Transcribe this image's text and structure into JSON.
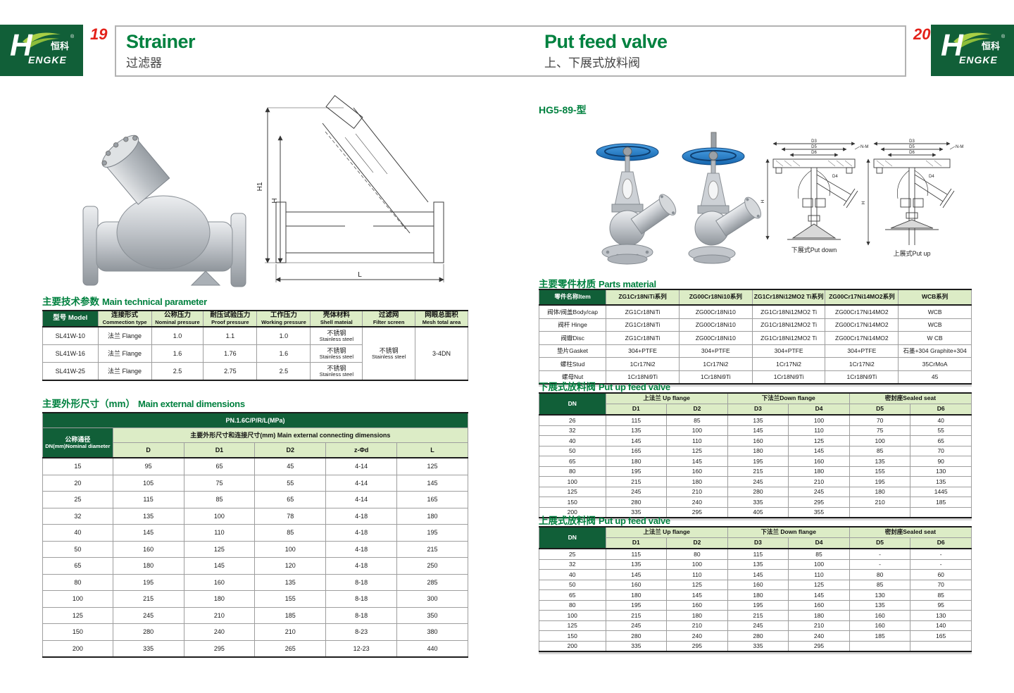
{
  "colors": {
    "brand_green": "#115f38",
    "light_green": "#dcecc6",
    "accent_green": "#00813f",
    "page_red": "#e32119",
    "handwheel_blue": "#1f7fd0"
  },
  "brand": {
    "h": "H",
    "rest": "ENGKE",
    "zh": "恒科",
    "reg": "®"
  },
  "left": {
    "page_no": "19",
    "title_en": "Strainer",
    "title_zh": "过滤器",
    "drawing_labels": {
      "h1": "H1",
      "h": "H",
      "l": "L"
    },
    "tech": {
      "title_zh": "主要技术参数",
      "title_en": "Main technical parameter",
      "head": [
        [
          {
            "t": "型号 Model",
            "cls": "dark"
          },
          {
            "t": "连接形式",
            "sub": "Commection type"
          },
          {
            "t": "公称压力",
            "sub": "Nominal pressure"
          },
          {
            "t": "耐压试验压力",
            "sub": "Proof pressure"
          },
          {
            "t": "工作压力",
            "sub": "Working pressure"
          },
          {
            "t": "壳体材料",
            "sub": "Shell mateial"
          },
          {
            "t": "过滤网",
            "sub": "Filter screen"
          },
          {
            "t": "网眼总面积",
            "sub": "Mesh total area"
          }
        ]
      ],
      "body": [
        [
          {
            "t": "SL41W-10"
          },
          {
            "t": "法兰 Flange"
          },
          {
            "t": "1.0"
          },
          {
            "t": "1.1"
          },
          {
            "t": "1.0"
          },
          {
            "t": "不锈钢",
            "sub": "Stainless steel"
          },
          {
            "t": "不锈钢",
            "sub": "Stainless steel",
            "rowspan": 3
          },
          {
            "t": "3-4DN",
            "rowspan": 3
          }
        ],
        [
          {
            "t": "SL41W-16"
          },
          {
            "t": "法兰 Flange"
          },
          {
            "t": "1.6"
          },
          {
            "t": "1.76"
          },
          {
            "t": "1.6"
          },
          {
            "t": "不锈钢",
            "sub": "Stainless steel"
          }
        ],
        [
          {
            "t": "SL41W-25"
          },
          {
            "t": "法兰 Flange"
          },
          {
            "t": "2.5"
          },
          {
            "t": "2.75"
          },
          {
            "t": "2.5"
          },
          {
            "t": "不锈钢",
            "sub": "Stainless steel"
          }
        ]
      ]
    },
    "dims": {
      "title_zh": "主要外形尺寸（mm）",
      "title_en": "Main external dimensions",
      "head": [
        [
          {
            "t": "PN.1.6C/P/R/L(MPa)",
            "cls": "dark",
            "colspan": 6
          }
        ],
        [
          {
            "t": "公称通径",
            "sub": "DN(mm)Nominal diameter",
            "cls": "dark",
            "rowspan": 2
          },
          {
            "t": "主要外形尺寸和连接尺寸(mm) Main external connecting dimensions",
            "colspan": 5
          }
        ],
        [
          {
            "t": "D"
          },
          {
            "t": "D1"
          },
          {
            "t": "D2"
          },
          {
            "t": "z-Φd"
          },
          {
            "t": "L"
          }
        ]
      ],
      "body": [
        [
          "15",
          "95",
          "65",
          "45",
          "4-14",
          "125"
        ],
        [
          "20",
          "105",
          "75",
          "55",
          "4-14",
          "145"
        ],
        [
          "25",
          "115",
          "85",
          "65",
          "4-14",
          "165"
        ],
        [
          "32",
          "135",
          "100",
          "78",
          "4-18",
          "180"
        ],
        [
          "40",
          "145",
          "110",
          "85",
          "4-18",
          "195"
        ],
        [
          "50",
          "160",
          "125",
          "100",
          "4-18",
          "215"
        ],
        [
          "65",
          "180",
          "145",
          "120",
          "4-18",
          "250"
        ],
        [
          "80",
          "195",
          "160",
          "135",
          "8-18",
          "285"
        ],
        [
          "100",
          "215",
          "180",
          "155",
          "8-18",
          "300"
        ],
        [
          "125",
          "245",
          "210",
          "185",
          "8-18",
          "350"
        ],
        [
          "150",
          "280",
          "240",
          "210",
          "8-23",
          "380"
        ],
        [
          "200",
          "335",
          "295",
          "265",
          "12-23",
          "440"
        ]
      ]
    }
  },
  "right": {
    "page_no": "20",
    "title_en": "Put feed valve",
    "title_zh": "上、下展式放料阀",
    "model_label": "HG5-89-型",
    "captions": {
      "down": "下展式Put down",
      "up": "上展式Put up"
    },
    "drawing_labels": {
      "d3": "D3",
      "d4": "D4",
      "d5": "D5",
      "d6": "D6",
      "nm": "N-M",
      "h": "H"
    },
    "parts": {
      "title_zh": "主要零件材质",
      "title_en": "Parts material",
      "head": [
        [
          {
            "t": "零件名称Item",
            "cls": "dark"
          },
          {
            "t": "ZG1Cr18NiTi系列"
          },
          {
            "t": "ZG00Cr18Ni10系列"
          },
          {
            "t": "ZG1Cr18Ni12MO2 Ti系列"
          },
          {
            "t": "ZG00Cr17Ni14MO2系列"
          },
          {
            "t": "WCB系列"
          }
        ]
      ],
      "body": [
        [
          "阀体/阀盖Body/cap",
          "ZG1Cr18NiTi",
          "ZG00Cr18Ni10",
          "ZG1Cr18Ni12MO2 Ti",
          "ZG00Cr17Ni14MO2",
          "WCB"
        ],
        [
          "阀杆 Hinge",
          "ZG1Cr18NiTi",
          "ZG00Cr18Ni10",
          "ZG1Cr18Ni12MO2 Ti",
          "ZG00Cr17Ni14MO2",
          "WCB"
        ],
        [
          "阀瓣Disc",
          "ZG1Cr18NiTi",
          "ZG00Cr18Ni10",
          "ZG1Cr18Ni12MO2 Ti",
          "ZG00Cr17Ni14MO2",
          "W CB"
        ],
        [
          "垫片Gasket",
          "304+PTFE",
          "304+PTFE",
          "304+PTFE",
          "304+PTFE",
          "石墨+304 Graphite+304"
        ],
        [
          "螺柱Stud",
          "1Cr17Ni2",
          "1Cr17Ni2",
          "1Cr17Ni2",
          "1Cr17Ni2",
          "35CrMoA"
        ],
        [
          "螺母Nut",
          "1Cr18Ni9Ti",
          "1Cr18Ni9Ti",
          "1Cr18Ni9Ti",
          "1Cr18Ni9Ti",
          "45"
        ]
      ]
    },
    "down_table": {
      "title_zh": "下展式放料阀",
      "title_en": "Put up feed valve",
      "head": [
        [
          {
            "t": "DN",
            "cls": "dark",
            "rowspan": 2
          },
          {
            "t": "上法兰 Up flange",
            "colspan": 2
          },
          {
            "t": "下法兰Down flange",
            "colspan": 2
          },
          {
            "t": "密封座Sealed seat",
            "colspan": 2
          }
        ],
        [
          {
            "t": "D1"
          },
          {
            "t": "D2"
          },
          {
            "t": "D3"
          },
          {
            "t": "D4"
          },
          {
            "t": "D5"
          },
          {
            "t": "D6"
          }
        ]
      ],
      "body": [
        [
          "26",
          "115",
          "85",
          "135",
          "100",
          "70",
          "40"
        ],
        [
          "32",
          "135",
          "100",
          "145",
          "110",
          "75",
          "55"
        ],
        [
          "40",
          "145",
          "110",
          "160",
          "125",
          "100",
          "65"
        ],
        [
          "50",
          "165",
          "125",
          "180",
          "145",
          "85",
          "70"
        ],
        [
          "65",
          "180",
          "145",
          "195",
          "160",
          "135",
          "90"
        ],
        [
          "80",
          "195",
          "160",
          "215",
          "180",
          "155",
          "130"
        ],
        [
          "100",
          "215",
          "180",
          "245",
          "210",
          "195",
          "135"
        ],
        [
          "125",
          "245",
          "210",
          "280",
          "245",
          "180",
          "1445"
        ],
        [
          "150",
          "280",
          "240",
          "335",
          "295",
          "210",
          "185"
        ],
        [
          "200",
          "335",
          "295",
          "405",
          "355",
          "",
          ""
        ]
      ]
    },
    "up_table": {
      "title_zh": "上展式放料阀",
      "title_en": "Put up feed valve",
      "head": [
        [
          {
            "t": "DN",
            "cls": "dark",
            "rowspan": 2
          },
          {
            "t": "上法兰 Up flange",
            "colspan": 2
          },
          {
            "t": "下法兰 Down flange",
            "colspan": 2
          },
          {
            "t": "密封座Sealed seat",
            "colspan": 2
          }
        ],
        [
          {
            "t": "D1"
          },
          {
            "t": "D2"
          },
          {
            "t": "D3"
          },
          {
            "t": "D4"
          },
          {
            "t": "D5"
          },
          {
            "t": "D6"
          }
        ]
      ],
      "body": [
        [
          "25",
          "115",
          "80",
          "115",
          "85",
          "-",
          "-"
        ],
        [
          "32",
          "135",
          "100",
          "135",
          "100",
          "-",
          "-"
        ],
        [
          "40",
          "145",
          "110",
          "145",
          "110",
          "80",
          "60"
        ],
        [
          "50",
          "160",
          "125",
          "160",
          "125",
          "85",
          "70"
        ],
        [
          "65",
          "180",
          "145",
          "180",
          "145",
          "130",
          "85"
        ],
        [
          "80",
          "195",
          "160",
          "195",
          "160",
          "135",
          "95"
        ],
        [
          "100",
          "215",
          "180",
          "215",
          "180",
          "160",
          "130"
        ],
        [
          "125",
          "245",
          "210",
          "245",
          "210",
          "160",
          "140"
        ],
        [
          "150",
          "280",
          "240",
          "280",
          "240",
          "185",
          "165"
        ],
        [
          "200",
          "335",
          "295",
          "335",
          "295",
          "",
          ""
        ]
      ]
    }
  }
}
